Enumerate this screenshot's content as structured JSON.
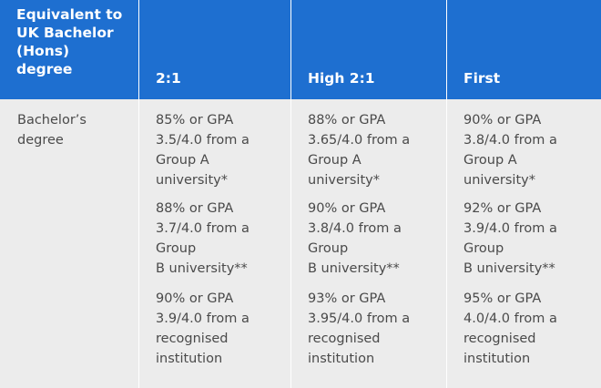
{
  "header": {
    "col0_lines": [
      "Equivalent to",
      "UK Bachelor",
      "(Hons)",
      "degree"
    ],
    "col1": "2:1",
    "col2": "High 2:1",
    "col3": "First"
  },
  "row": {
    "label_lines": [
      "Bachelor’s",
      "degree"
    ],
    "cells": [
      [
        [
          "85% or GPA",
          "3.5/4.0 from a",
          "Group A",
          "university*"
        ],
        [
          "88% or GPA",
          "3.7/4.0 from a",
          "Group",
          "B university**"
        ],
        [
          "90% or GPA",
          "3.9/4.0 from a",
          "recognised",
          "institution"
        ]
      ],
      [
        [
          "88% or GPA",
          "3.65/4.0 from a",
          "Group A",
          "university*"
        ],
        [
          "90% or GPA",
          "3.8/4.0 from a",
          "Group",
          "B university**"
        ],
        [
          "93% or GPA",
          "3.95/4.0 from a",
          "recognised",
          "institution"
        ]
      ],
      [
        [
          "90% or GPA",
          "3.8/4.0 from a",
          "Group A",
          "university*"
        ],
        [
          "92% or GPA",
          "3.9/4.0 from a",
          "Group",
          "B university**"
        ],
        [
          "95% or GPA",
          "4.0/4.0 from a",
          "recognised",
          "institution"
        ]
      ]
    ]
  },
  "colors": {
    "header_bg": "#1e6fd0",
    "body_bg": "#ececec",
    "text": "#4a4a4a"
  }
}
